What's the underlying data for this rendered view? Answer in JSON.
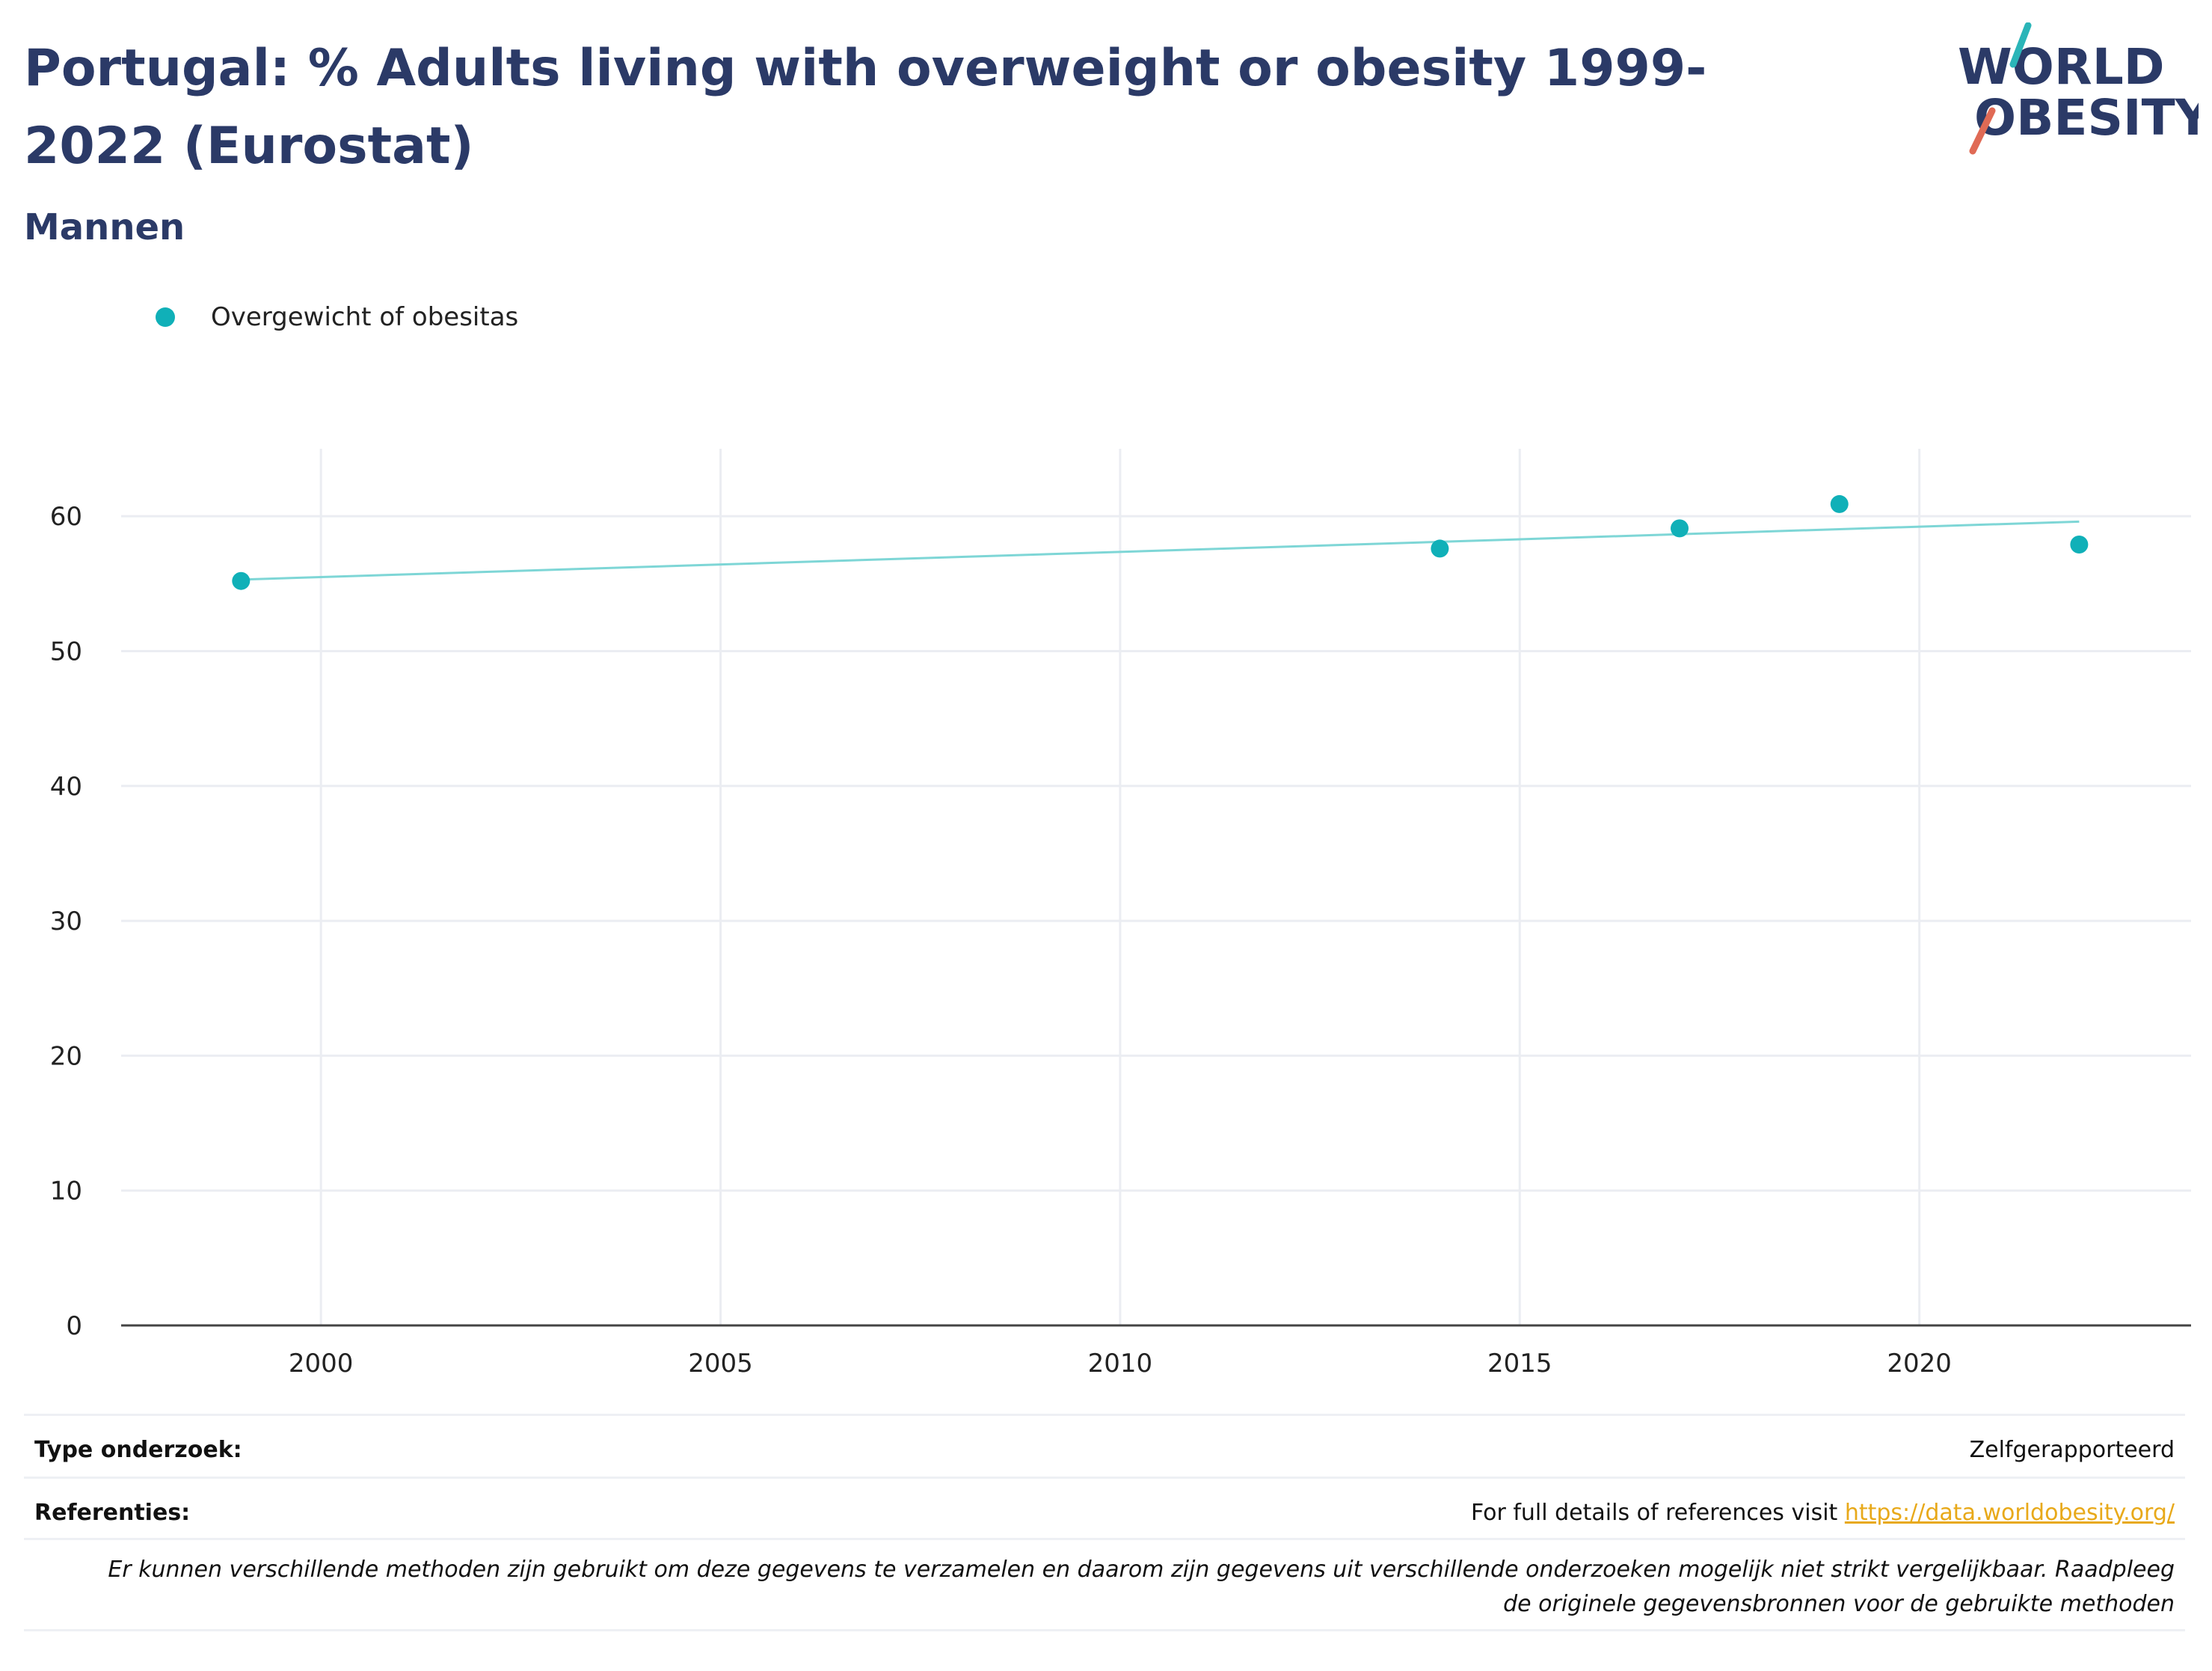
{
  "header": {
    "title": "Portugal: % Adults living with overweight or obesity 1999-2022 (Eurostat)",
    "subtitle": "Mannen"
  },
  "logo": {
    "line1": "WORLD",
    "line2": "OBESITY",
    "text_color": "#2b3a67",
    "slash_top_color": "#2bb5b8",
    "slash_bottom_color": "#e06a55"
  },
  "legend": {
    "label": "Overgewicht of obesitas",
    "color": "#10b0b8"
  },
  "chart_data": {
    "type": "scatter",
    "series": [
      {
        "name": "Overgewicht of obesitas",
        "color": "#10b0b8",
        "points": [
          {
            "x": 1999,
            "y": 55.2
          },
          {
            "x": 2014,
            "y": 57.6
          },
          {
            "x": 2017,
            "y": 59.1
          },
          {
            "x": 2019,
            "y": 60.9
          },
          {
            "x": 2022,
            "y": 57.9
          }
        ]
      }
    ],
    "trendline": {
      "color": "#7ed6d6",
      "x": [
        1999,
        2022
      ],
      "y": [
        55.3,
        59.6
      ]
    },
    "xlim": [
      1997.5,
      2023.4
    ],
    "ylim": [
      0,
      65
    ],
    "xticks": [
      2000,
      2005,
      2010,
      2015,
      2020
    ],
    "yticks": [
      0,
      10,
      20,
      30,
      40,
      50,
      60
    ],
    "grid": true,
    "legend_position": "top-left"
  },
  "footer": {
    "type_key": "Type onderzoek:",
    "type_value": "Zelfgerapporteerd",
    "ref_key": "Referenties:",
    "ref_text": "For full details of references visit",
    "ref_link": "https://data.worldobesity.org/",
    "note_line1": "Er kunnen verschillende methoden zijn gebruikt om deze gegevens te verzamelen en daarom zijn gegevens uit verschillende onderzoeken mogelijk niet strikt vergelijkbaar. Raadpleeg",
    "note_line2": "de originele gegevensbronnen voor de gebruikte methoden"
  }
}
